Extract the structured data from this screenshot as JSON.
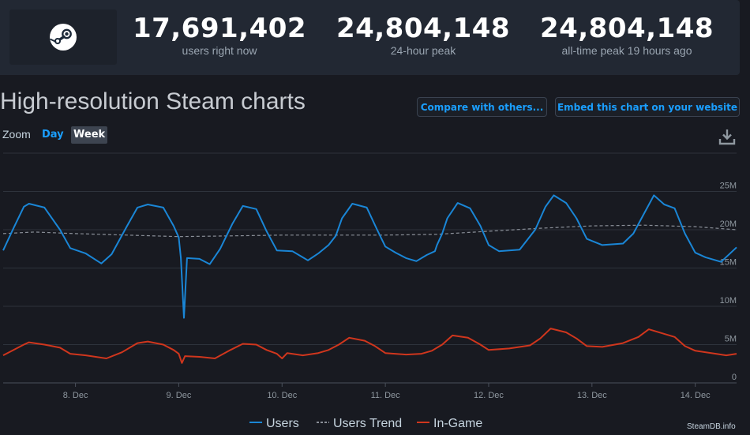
{
  "header": {
    "stats": [
      {
        "value": "17,691,402",
        "label": "users right now"
      },
      {
        "value": "24,804,148",
        "label": "24-hour peak"
      },
      {
        "value": "24,804,148",
        "label": "all-time peak 19 hours ago"
      }
    ]
  },
  "title": "High-resolution Steam charts",
  "buttons": {
    "compare": "Compare with others...",
    "embed": "Embed this chart on your website"
  },
  "zoom": {
    "label": "Zoom",
    "options": [
      "Day",
      "Week"
    ],
    "selected": "Week"
  },
  "watermark": "SteamDB.info",
  "colors": {
    "users": "#1a86d6",
    "trend": "#8a8f98",
    "ingame": "#d0361d",
    "accent": "#1a9fff"
  },
  "chart_data": {
    "type": "line",
    "x_unit": "day",
    "x_start": 7.3,
    "x_end": 14.4,
    "x_ticks": [
      {
        "x": 8,
        "label": "8. Dec"
      },
      {
        "x": 9,
        "label": "9. Dec"
      },
      {
        "x": 10,
        "label": "10. Dec"
      },
      {
        "x": 11,
        "label": "11. Dec"
      },
      {
        "x": 12,
        "label": "12. Dec"
      },
      {
        "x": 13,
        "label": "13. Dec"
      },
      {
        "x": 14,
        "label": "14. Dec"
      }
    ],
    "y_ticks": [
      {
        "v": 0,
        "label": "0"
      },
      {
        "v": 5,
        "label": "5M"
      },
      {
        "v": 10,
        "label": "10M"
      },
      {
        "v": 15,
        "label": "15M"
      },
      {
        "v": 20,
        "label": "20M"
      },
      {
        "v": 25,
        "label": "25M"
      }
    ],
    "ylim": [
      0,
      30
    ],
    "legend_position": "bottom-center",
    "series": [
      {
        "name": "Users",
        "style": "solid",
        "points": [
          [
            7.3,
            17.3
          ],
          [
            7.4,
            20.2
          ],
          [
            7.5,
            23.0
          ],
          [
            7.55,
            23.4
          ],
          [
            7.7,
            22.9
          ],
          [
            7.85,
            20.0
          ],
          [
            7.95,
            17.6
          ],
          [
            8.1,
            16.9
          ],
          [
            8.25,
            15.6
          ],
          [
            8.35,
            16.8
          ],
          [
            8.5,
            20.5
          ],
          [
            8.6,
            22.9
          ],
          [
            8.7,
            23.3
          ],
          [
            8.85,
            22.9
          ],
          [
            8.95,
            20.5
          ],
          [
            9.0,
            19.0
          ],
          [
            9.02,
            16.3
          ],
          [
            9.05,
            8.5
          ],
          [
            9.08,
            16.3
          ],
          [
            9.2,
            16.2
          ],
          [
            9.3,
            15.5
          ],
          [
            9.4,
            17.5
          ],
          [
            9.52,
            20.8
          ],
          [
            9.62,
            23.1
          ],
          [
            9.75,
            22.7
          ],
          [
            9.85,
            19.8
          ],
          [
            9.95,
            17.3
          ],
          [
            10.1,
            17.2
          ],
          [
            10.25,
            16.0
          ],
          [
            10.35,
            16.9
          ],
          [
            10.45,
            18.0
          ],
          [
            10.52,
            19.2
          ],
          [
            10.58,
            21.5
          ],
          [
            10.68,
            23.4
          ],
          [
            10.82,
            22.9
          ],
          [
            10.92,
            20.0
          ],
          [
            11.0,
            17.8
          ],
          [
            11.1,
            17.0
          ],
          [
            11.2,
            16.3
          ],
          [
            11.3,
            15.9
          ],
          [
            11.4,
            16.7
          ],
          [
            11.48,
            17.2
          ],
          [
            11.5,
            18.0
          ],
          [
            11.55,
            19.5
          ],
          [
            11.6,
            21.5
          ],
          [
            11.7,
            23.5
          ],
          [
            11.82,
            22.8
          ],
          [
            11.92,
            20.5
          ],
          [
            12.0,
            18.0
          ],
          [
            12.1,
            17.2
          ],
          [
            12.3,
            17.4
          ],
          [
            12.45,
            20.0
          ],
          [
            12.55,
            23.0
          ],
          [
            12.63,
            24.5
          ],
          [
            12.75,
            23.5
          ],
          [
            12.85,
            21.5
          ],
          [
            12.95,
            18.8
          ],
          [
            13.1,
            18.0
          ],
          [
            13.3,
            18.2
          ],
          [
            13.4,
            19.5
          ],
          [
            13.5,
            22.0
          ],
          [
            13.6,
            24.5
          ],
          [
            13.7,
            23.3
          ],
          [
            13.8,
            22.8
          ],
          [
            13.9,
            19.5
          ],
          [
            14.0,
            17.0
          ],
          [
            14.1,
            16.4
          ],
          [
            14.25,
            15.8
          ],
          [
            14.4,
            17.7
          ]
        ]
      },
      {
        "name": "Users Trend",
        "style": "dashed",
        "points": [
          [
            7.3,
            19.5
          ],
          [
            7.6,
            19.7
          ],
          [
            8.0,
            19.5
          ],
          [
            8.5,
            19.3
          ],
          [
            9.0,
            19.1
          ],
          [
            9.5,
            19.2
          ],
          [
            10.0,
            19.3
          ],
          [
            10.5,
            19.3
          ],
          [
            11.0,
            19.3
          ],
          [
            11.5,
            19.4
          ],
          [
            12.0,
            19.8
          ],
          [
            12.5,
            20.2
          ],
          [
            13.0,
            20.5
          ],
          [
            13.5,
            20.6
          ],
          [
            14.0,
            20.4
          ],
          [
            14.4,
            20.0
          ]
        ]
      },
      {
        "name": "In-Game",
        "style": "solid",
        "points": [
          [
            7.3,
            3.6
          ],
          [
            7.5,
            5.0
          ],
          [
            7.55,
            5.3
          ],
          [
            7.7,
            5.0
          ],
          [
            7.85,
            4.6
          ],
          [
            7.95,
            3.8
          ],
          [
            8.1,
            3.6
          ],
          [
            8.3,
            3.2
          ],
          [
            8.45,
            4.0
          ],
          [
            8.6,
            5.2
          ],
          [
            8.7,
            5.4
          ],
          [
            8.85,
            5.0
          ],
          [
            8.95,
            4.3
          ],
          [
            9.0,
            3.8
          ],
          [
            9.03,
            2.6
          ],
          [
            9.06,
            3.5
          ],
          [
            9.2,
            3.4
          ],
          [
            9.35,
            3.2
          ],
          [
            9.5,
            4.3
          ],
          [
            9.62,
            5.1
          ],
          [
            9.75,
            5.0
          ],
          [
            9.85,
            4.3
          ],
          [
            9.95,
            3.8
          ],
          [
            10.0,
            3.2
          ],
          [
            10.05,
            3.9
          ],
          [
            10.2,
            3.6
          ],
          [
            10.35,
            3.9
          ],
          [
            10.45,
            4.3
          ],
          [
            10.55,
            5.0
          ],
          [
            10.65,
            5.9
          ],
          [
            10.8,
            5.5
          ],
          [
            10.9,
            4.8
          ],
          [
            11.0,
            3.9
          ],
          [
            11.2,
            3.7
          ],
          [
            11.35,
            3.8
          ],
          [
            11.45,
            4.2
          ],
          [
            11.55,
            5.0
          ],
          [
            11.65,
            6.2
          ],
          [
            11.8,
            5.9
          ],
          [
            11.92,
            5.0
          ],
          [
            12.0,
            4.3
          ],
          [
            12.2,
            4.5
          ],
          [
            12.4,
            4.9
          ],
          [
            12.5,
            5.8
          ],
          [
            12.6,
            7.1
          ],
          [
            12.75,
            6.6
          ],
          [
            12.85,
            5.8
          ],
          [
            12.95,
            4.8
          ],
          [
            13.1,
            4.7
          ],
          [
            13.3,
            5.2
          ],
          [
            13.45,
            6.0
          ],
          [
            13.55,
            7.0
          ],
          [
            13.7,
            6.4
          ],
          [
            13.8,
            6.0
          ],
          [
            13.9,
            4.8
          ],
          [
            14.0,
            4.2
          ],
          [
            14.2,
            3.8
          ],
          [
            14.3,
            3.6
          ],
          [
            14.4,
            3.8
          ]
        ]
      }
    ]
  }
}
